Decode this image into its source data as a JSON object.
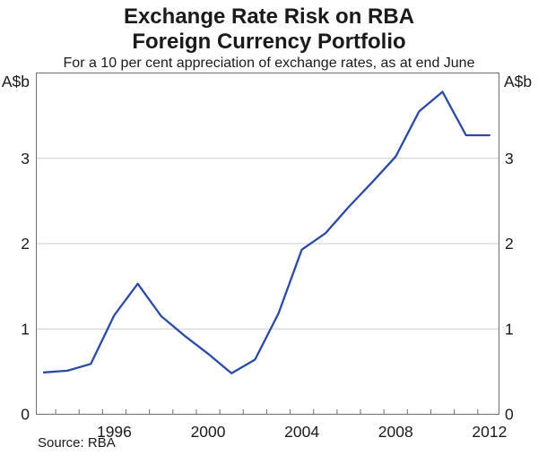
{
  "title": {
    "line1": "Exchange Rate Risk on RBA",
    "line2": "Foreign Currency Portfolio"
  },
  "subtitle": "For a 10 per cent appreciation of exchange rates, as at end June",
  "source": "Source: RBA",
  "axes": {
    "unit": "A$b",
    "ytick_labels": [
      "0",
      "1",
      "2",
      "3"
    ],
    "xtick_label_years": [
      1996,
      2000,
      2004,
      2008,
      2012
    ]
  },
  "colors": {
    "line": "#2a4aa4",
    "frame": "#6f6f6f",
    "grid": "#cccccc",
    "text": "#1a1a1a"
  },
  "chart_data": {
    "type": "line",
    "title": "Exchange Rate Risk on RBA Foreign Currency Portfolio",
    "subtitle": "For a 10 per cent appreciation of exchange rates, as at end June",
    "ylabel": "A$b",
    "xlabel": "",
    "x": [
      1993,
      1994,
      1995,
      1996,
      1997,
      1998,
      1999,
      2000,
      2001,
      2002,
      2003,
      2004,
      2005,
      2006,
      2007,
      2008,
      2009,
      2010,
      2011,
      2012
    ],
    "series": [
      {
        "name": "Exchange rate risk on RBA foreign currency portfolio",
        "values": [
          0.49,
          0.51,
          0.59,
          1.16,
          1.53,
          1.15,
          0.92,
          0.71,
          0.48,
          0.64,
          1.18,
          1.93,
          2.12,
          2.43,
          2.72,
          3.02,
          3.55,
          3.78,
          3.27,
          3.27
        ]
      }
    ],
    "ylim": [
      0,
      4
    ],
    "yticks": [
      0,
      1,
      2,
      3
    ],
    "grid": "horizontal",
    "legend_position": "none",
    "source": "Source: RBA"
  }
}
